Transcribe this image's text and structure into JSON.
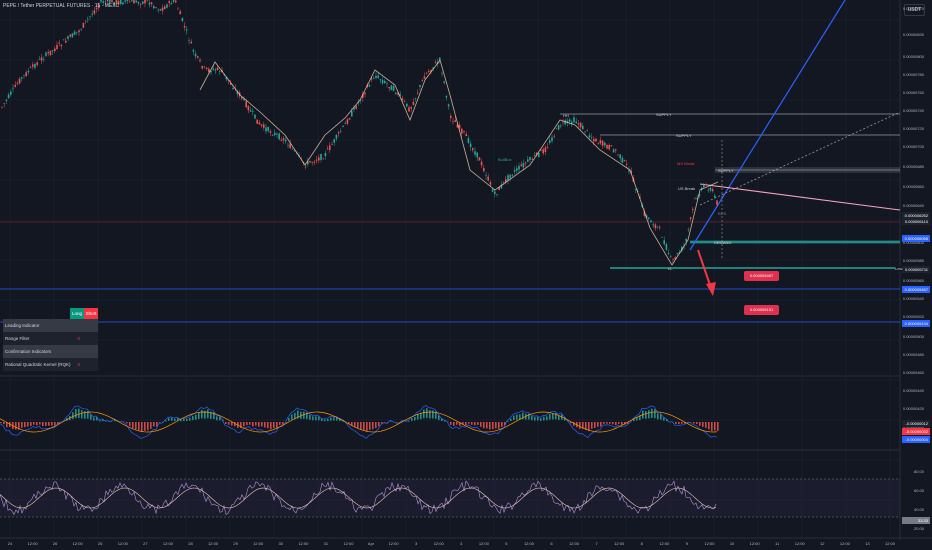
{
  "title": "PEPE / Tether PERPETUAL FUTURES · 15 · MEXC",
  "pair": "USDT",
  "price_axis": [
    "0.00000870",
    "0.00000830",
    "0.00000800",
    "0.00000780",
    "0.00000760",
    "0.00000740",
    "0.00000720",
    "0.00000700",
    "0.00000680",
    "0.00000660",
    "0.00000640",
    "0.00000600",
    "0.00000580",
    "0.00000560",
    "0.00000540",
    "0.00000520",
    "0.00000500",
    "0.00000480",
    "0.00000460",
    "0.00000440",
    "0.00000420",
    "0.00000400",
    "80.00",
    "60.00",
    "40.00",
    "20.00"
  ],
  "price_tags": [
    {
      "text": "0.000006252",
      "bg": "#1e222d"
    },
    {
      "text": "0.000006110",
      "bg": "#1e222d"
    },
    {
      "text": "0.000006058",
      "bg": "#2962ff"
    },
    {
      "text": "0.000005711",
      "bg": "#1e222d"
    },
    {
      "text": "0.000005467",
      "bg": "#2962ff"
    },
    {
      "text": "0.000005134",
      "bg": "#2962ff"
    },
    {
      "text": "-0.00000012",
      "bg": "#1e222d"
    },
    {
      "text": "-0.00000032",
      "bg": "#f23645"
    },
    {
      "text": "-0.00000004",
      "bg": "#2962ff"
    },
    {
      "text": "33.33",
      "bg": "#787b86"
    }
  ],
  "callouts": [
    {
      "text": "0.000005467"
    },
    {
      "text": "0.000005151"
    }
  ],
  "annotations": {
    "supply1": "SUPPLY",
    "supply2": "SUPPLY",
    "supply3": "SUPPLY",
    "demand": "DEMAND",
    "low": "Low",
    "bos": "BOS",
    "ms_break": "MS Break",
    "us_break": "US Break",
    "bull_mark": "BullBox",
    "hh": "HH",
    "ll": "LL"
  },
  "time_axis": [
    "24",
    "12:00",
    "26",
    "12:00",
    "26",
    "12:00",
    "27",
    "12:00",
    "28",
    "12:00",
    "29",
    "12:00",
    "30",
    "12:00",
    "31",
    "12:00",
    "Apr",
    "12:00",
    "3",
    "12:00",
    "4",
    "12:00",
    "5",
    "12:00",
    "6",
    "12:00",
    "7",
    "12:00",
    "8",
    "12:00",
    "9",
    "12:00",
    "10",
    "12:00",
    "11",
    "12:00",
    "12",
    "12:00",
    "13",
    "12:00"
  ],
  "panel": {
    "long_label": "Long",
    "short_label": "Short",
    "rows": [
      {
        "type": "section",
        "label": "Leading Indicator"
      },
      {
        "type": "item",
        "label": "Range Filter",
        "mark": "X"
      },
      {
        "type": "section",
        "label": "Confirmation Indicators"
      },
      {
        "type": "item",
        "label": "Rational Quadratic Kernel (RQK)",
        "mark": "X"
      }
    ]
  },
  "colors": {
    "bg": "#131722",
    "up": "#26a69a",
    "down": "#ef5350",
    "blue_line": "#2962ff",
    "accent_red": "#e0304f"
  }
}
